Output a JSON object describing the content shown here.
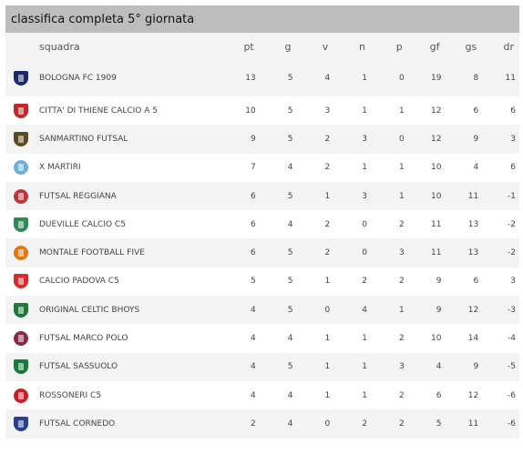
{
  "title": "classifica completa 5° giornata",
  "columns": {
    "team": "squadra",
    "pt": "pt",
    "g": "g",
    "v": "v",
    "n": "n",
    "p": "p",
    "gf": "gf",
    "gs": "gs",
    "dr": "dr"
  },
  "rows": [
    {
      "team": "BOLOGNA FC 1909",
      "pt": "13",
      "g": "5",
      "v": "4",
      "n": "1",
      "p": "0",
      "gf": "19",
      "gs": "8",
      "dr": "11",
      "logo_color": "#1b2a6b",
      "logo_icon": "shield-icon"
    },
    {
      "team": "CITTA' DI THIENE CALCIO A 5",
      "pt": "10",
      "g": "5",
      "v": "3",
      "n": "1",
      "p": "1",
      "gf": "12",
      "gs": "6",
      "dr": "6",
      "logo_color": "#c0282d",
      "logo_icon": "shield-icon"
    },
    {
      "team": "SANMARTINO FUTSAL",
      "pt": "9",
      "g": "5",
      "v": "2",
      "n": "3",
      "p": "0",
      "gf": "12",
      "gs": "9",
      "dr": "3",
      "logo_color": "#5a4a1e",
      "logo_icon": "shield-icon"
    },
    {
      "team": "X MARTIRI",
      "pt": "7",
      "g": "4",
      "v": "2",
      "n": "1",
      "p": "1",
      "gf": "10",
      "gs": "4",
      "dr": "6",
      "logo_color": "#6ab0d8",
      "logo_icon": "round-icon"
    },
    {
      "team": "FUTSAL REGGIANA",
      "pt": "6",
      "g": "5",
      "v": "1",
      "n": "3",
      "p": "1",
      "gf": "10",
      "gs": "11",
      "dr": "-1",
      "logo_color": "#b8383c",
      "logo_icon": "round-icon"
    },
    {
      "team": "DUEVILLE CALCIO C5",
      "pt": "6",
      "g": "4",
      "v": "2",
      "n": "0",
      "p": "2",
      "gf": "11",
      "gs": "13",
      "dr": "-2",
      "logo_color": "#2e8b57",
      "logo_icon": "shield-icon"
    },
    {
      "team": "MONTALE FOOTBALL FIVE",
      "pt": "6",
      "g": "5",
      "v": "2",
      "n": "0",
      "p": "3",
      "gf": "11",
      "gs": "13",
      "dr": "-2",
      "logo_color": "#e07a10",
      "logo_icon": "round-icon"
    },
    {
      "team": "CALCIO PADOVA C5",
      "pt": "5",
      "g": "5",
      "v": "1",
      "n": "2",
      "p": "2",
      "gf": "9",
      "gs": "6",
      "dr": "3",
      "logo_color": "#d52b2b",
      "logo_icon": "shield-icon"
    },
    {
      "team": "ORIGINAL CELTIC BHOYS",
      "pt": "4",
      "g": "5",
      "v": "0",
      "n": "4",
      "p": "1",
      "gf": "9",
      "gs": "12",
      "dr": "-3",
      "logo_color": "#1f7a3a",
      "logo_icon": "shield-icon"
    },
    {
      "team": "FUTSAL MARCO POLO",
      "pt": "4",
      "g": "4",
      "v": "1",
      "n": "1",
      "p": "2",
      "gf": "10",
      "gs": "14",
      "dr": "-4",
      "logo_color": "#8a2a4a",
      "logo_icon": "round-icon"
    },
    {
      "team": "FUTSAL SASSUOLO",
      "pt": "4",
      "g": "5",
      "v": "1",
      "n": "1",
      "p": "3",
      "gf": "4",
      "gs": "9",
      "dr": "-5",
      "logo_color": "#157a3c",
      "logo_icon": "shield-icon"
    },
    {
      "team": "ROSSONERI C5",
      "pt": "4",
      "g": "4",
      "v": "1",
      "n": "1",
      "p": "2",
      "gf": "6",
      "gs": "12",
      "dr": "-6",
      "logo_color": "#c8202a",
      "logo_icon": "round-icon"
    },
    {
      "team": "FUTSAL CORNEDO",
      "pt": "2",
      "g": "4",
      "v": "0",
      "n": "2",
      "p": "2",
      "gf": "5",
      "gs": "11",
      "dr": "-6",
      "logo_color": "#2b3f8f",
      "logo_icon": "shield-icon"
    }
  ]
}
